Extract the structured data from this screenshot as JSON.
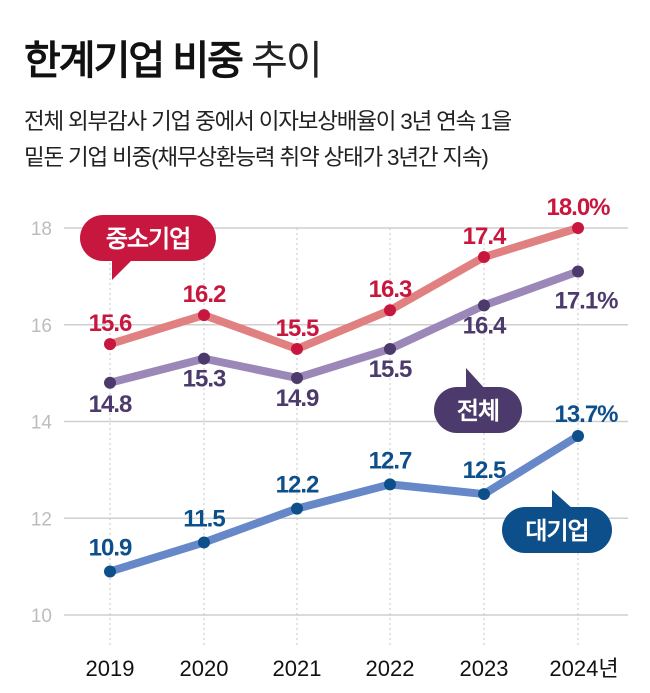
{
  "header": {
    "title_bold": "한계기업 비중",
    "title_light": "추이",
    "subtitle_line1": "전체 외부감사 기업 중에서 이자보상배율이 3년 연속 1을",
    "subtitle_line2": "밑돈 기업 비중(채무상환능력 취약 상태가 3년간 지속)"
  },
  "chart_data": {
    "type": "line",
    "title": "한계기업 비중 추이",
    "xlabel": "",
    "ylabel": "",
    "unit": "%",
    "x": [
      "2019",
      "2020",
      "2021",
      "2022",
      "2023",
      "2024년"
    ],
    "ylim": [
      10,
      18
    ],
    "yticks": [
      10,
      12,
      14,
      16,
      18
    ],
    "ytick_labels": [
      "10",
      "12",
      "14",
      "16",
      "18"
    ],
    "grid": true,
    "series": [
      {
        "name": "중소기업",
        "values": [
          15.6,
          16.2,
          15.5,
          16.3,
          17.4,
          18.0
        ],
        "labels": [
          "15.6",
          "16.2",
          "15.5",
          "16.3",
          "17.4",
          "18.0%"
        ],
        "label_position": "above",
        "line_color": "#e08080",
        "point_color": "#c8173e",
        "bubble_color": "#c8173e"
      },
      {
        "name": "전체",
        "values": [
          14.8,
          15.3,
          14.9,
          15.5,
          16.4,
          17.1
        ],
        "labels": [
          "14.8",
          "15.3",
          "14.9",
          "15.5",
          "16.4",
          "17.1%"
        ],
        "label_position": "below",
        "line_color": "#9b88b8",
        "point_color": "#4b3a6b",
        "bubble_color": "#4b3a6b"
      },
      {
        "name": "대기업",
        "values": [
          10.9,
          11.5,
          12.2,
          12.7,
          12.5,
          13.7
        ],
        "labels": [
          "10.9",
          "11.5",
          "12.2",
          "12.7",
          "12.5",
          "13.7%"
        ],
        "label_position": "above",
        "line_color": "#6688c8",
        "point_color": "#0d4f8b",
        "bubble_color": "#0d4f8b"
      }
    ]
  }
}
